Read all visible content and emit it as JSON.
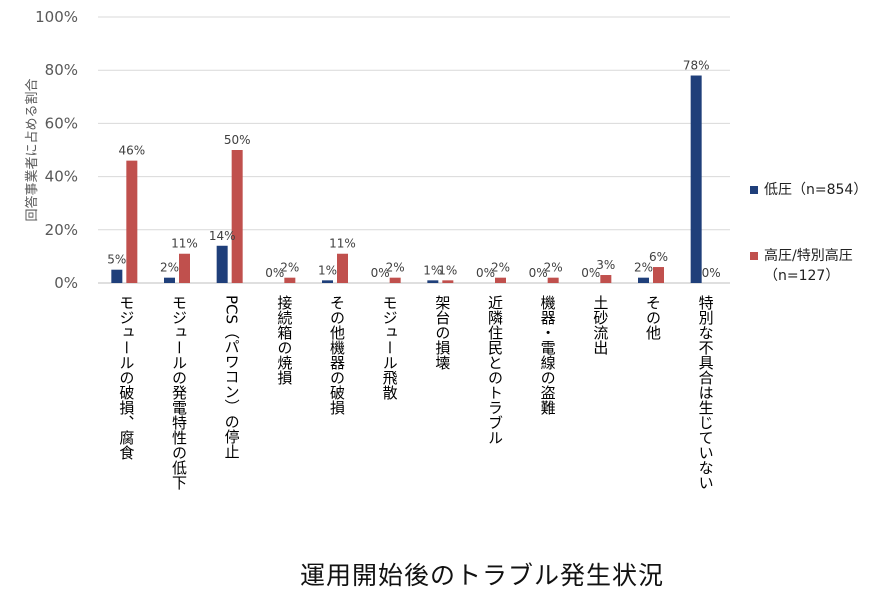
{
  "chart_data": {
    "type": "bar",
    "title": "運用開始後のトラブル発生状況",
    "ylabel": "回答事業者に占める割合",
    "ylim": [
      0,
      100
    ],
    "yticks": [
      "0%",
      "20%",
      "40%",
      "60%",
      "80%",
      "100%"
    ],
    "yticks_values": [
      0,
      20,
      40,
      60,
      80,
      100
    ],
    "grid": true,
    "legend_position": "right",
    "categories": [
      "モジュールの破損、腐食",
      "モジュールの発電特性の低下",
      "PCS（パワコン）の停止",
      "接続箱の焼損",
      "その他機器の破損",
      "モジュール飛散",
      "架台の損壊",
      "近隣住民とのトラブル",
      "機器・電線の盗難",
      "土砂流出",
      "その他",
      "特別な不具合は生じていない"
    ],
    "series": [
      {
        "name": "低圧（n=854）",
        "color": "#1f3f7a",
        "values": [
          5,
          2,
          14,
          0,
          1,
          0,
          1,
          0,
          0,
          0,
          2,
          78
        ],
        "labels": [
          "5%",
          "2%",
          "14%",
          "0%",
          "1%",
          "0%",
          "1%",
          "0%",
          "0%",
          "0%",
          "2%",
          "78%"
        ]
      },
      {
        "name": "高圧/特別高圧\n（n=127）",
        "color": "#c0504d",
        "values": [
          46,
          11,
          50,
          2,
          11,
          2,
          1,
          2,
          2,
          3,
          6,
          0
        ],
        "labels": [
          "46%",
          "11%",
          "50%",
          "2%",
          "11%",
          "2%",
          "1%",
          "2%",
          "2%",
          "3%",
          "6%",
          "0%"
        ]
      }
    ]
  }
}
